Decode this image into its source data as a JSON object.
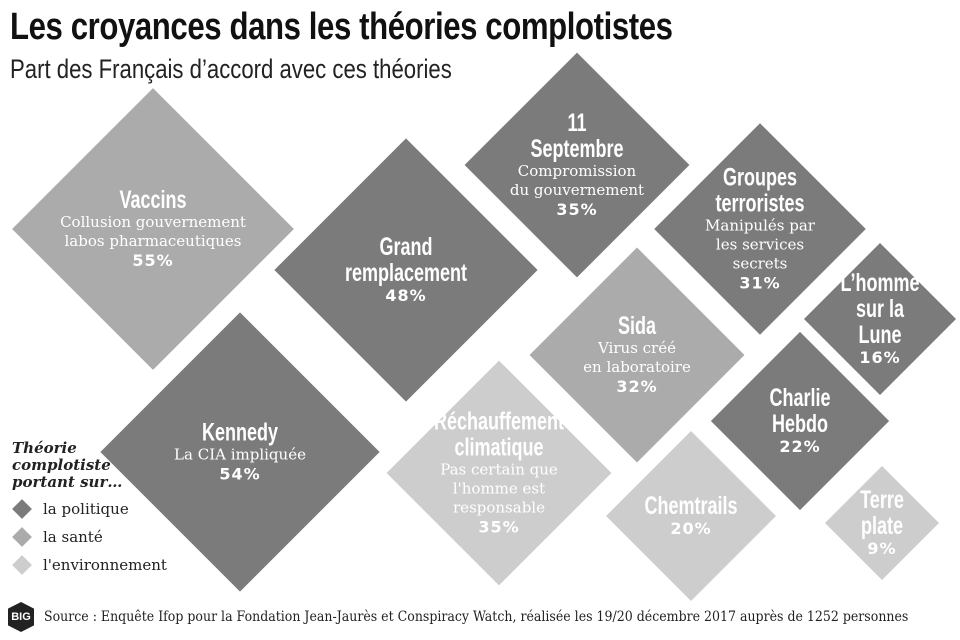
{
  "header": {
    "title": "Les croyances dans les théories complotistes",
    "subtitle": "Part des Français d’accord avec ces théories"
  },
  "legend": {
    "title": "Théorie\ncomplotiste\nportant sur…",
    "items": [
      {
        "label": "la politique",
        "color": "#7b7b7b"
      },
      {
        "label": "la santé",
        "color": "#ababab"
      },
      {
        "label": "l'environnement",
        "color": "#cdcdcd"
      }
    ]
  },
  "footer": {
    "logo": "BIG",
    "source": "Source : Enquête Ifop pour la Fondation Jean-Jaurès et Conspiracy Watch, réalisée les 19/20 décembre 2017 auprès de 1252 personnes"
  },
  "chart_data": {
    "type": "proportional-area diamonds",
    "unit": "%",
    "items": [
      {
        "name": "Vaccins",
        "desc": "Collusion gouvernement\nlabos pharmaceutiques",
        "value": 55,
        "category": "la santé",
        "value_label": "55%"
      },
      {
        "name": "Grand\nremplacement",
        "desc": "",
        "value": 48,
        "category": "la politique",
        "value_label": "48%"
      },
      {
        "name": "11\nSeptembre",
        "desc": "Compromission\ndu gouvernement",
        "value": 35,
        "category": "la politique",
        "value_label": "35%"
      },
      {
        "name": "Groupes\nterroristes",
        "desc": "Manipulés par\nles services\nsecrets",
        "value": 31,
        "category": "la politique",
        "value_label": "31%"
      },
      {
        "name": "Sida",
        "desc": "Virus créé\nen laboratoire",
        "value": 32,
        "category": "la santé",
        "value_label": "32%"
      },
      {
        "name": "L’homme\nsur la Lune",
        "desc": "",
        "value": 16,
        "category": "la politique",
        "value_label": "16%"
      },
      {
        "name": "Charlie\nHebdo",
        "desc": "",
        "value": 22,
        "category": "la politique",
        "value_label": "22%"
      },
      {
        "name": "Kennedy",
        "desc": "La CIA impliquée",
        "value": 54,
        "category": "la politique",
        "value_label": "54%"
      },
      {
        "name": "Réchauffement\nclimatique",
        "desc": "Pas certain que\nl'homme est\nresponsable",
        "value": 35,
        "category": "l'environnement",
        "value_label": "35%"
      },
      {
        "name": "Chemtrails",
        "desc": "",
        "value": 20,
        "category": "l'environnement",
        "value_label": "20%"
      },
      {
        "name": "Terre plate",
        "desc": "",
        "value": 9,
        "category": "l'environnement",
        "value_label": "9%"
      }
    ]
  }
}
